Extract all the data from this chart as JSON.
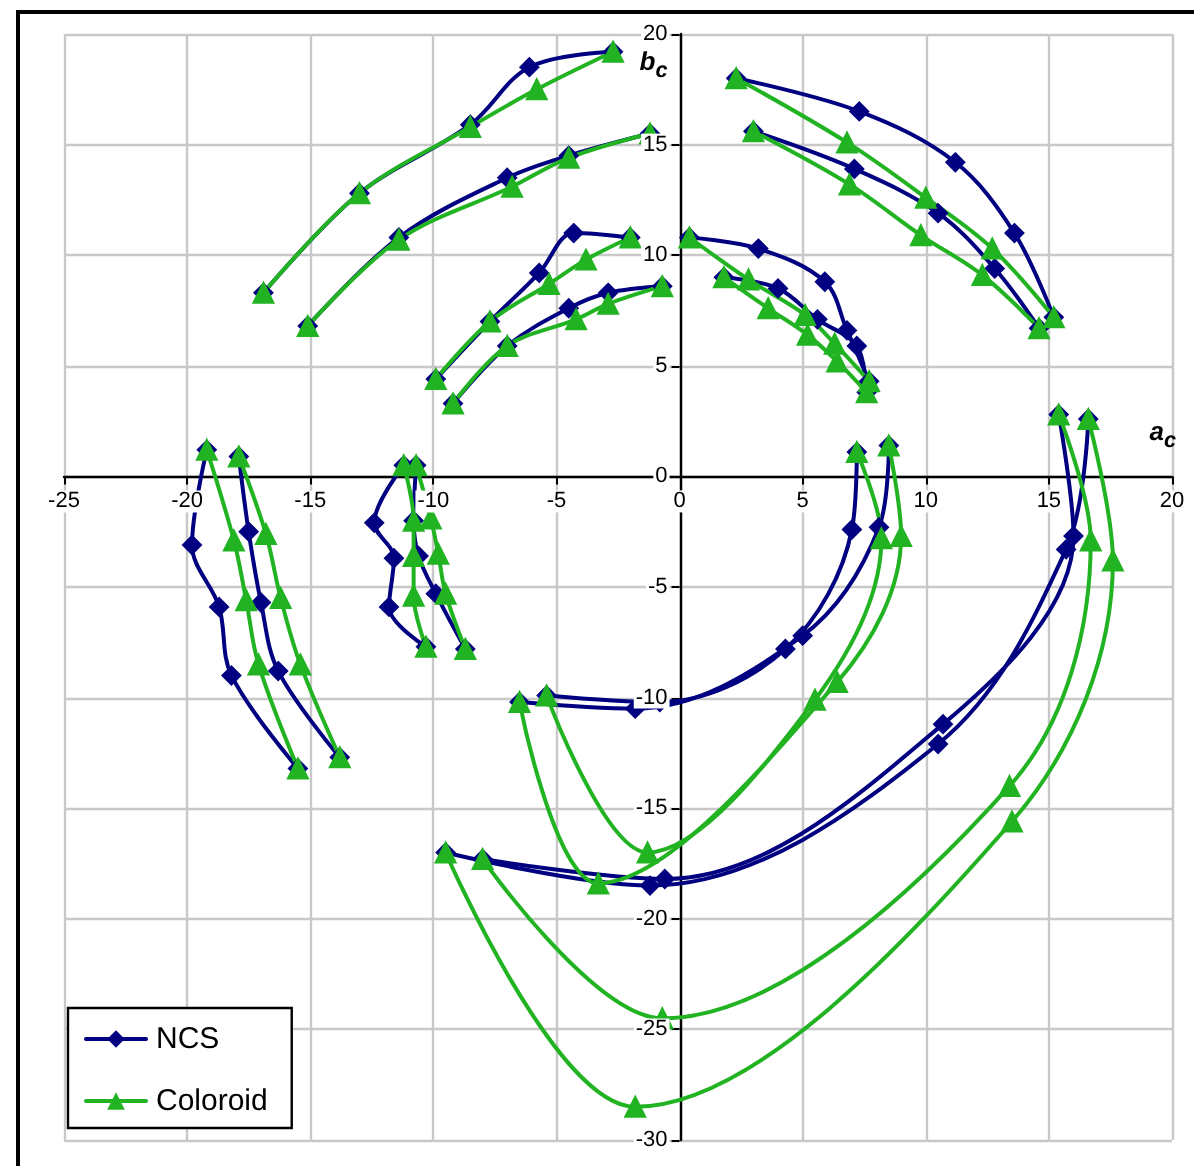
{
  "chart_data": {
    "type": "line",
    "xlabel": "a$_{c}$",
    "ylabel": "b$_{c}$",
    "xlim": [
      -25,
      20
    ],
    "ylim": [
      -30,
      20
    ],
    "xticks": [
      -25,
      -20,
      -15,
      -10,
      -5,
      0,
      5,
      10,
      15,
      20
    ],
    "yticks": [
      -30,
      -25,
      -20,
      -15,
      -10,
      -5,
      0,
      5,
      10,
      15,
      20
    ],
    "grid": true,
    "legend": "bottom left",
    "series": [
      {
        "name": "NCS",
        "color": "#000080",
        "marker": "diamond",
        "x": [
          -16.9,
          -13.0,
          -8.5,
          -6.1,
          -2.7,
          null,
          -15.1,
          -11.4,
          -7.0,
          -4.5,
          -1.2,
          null,
          -9.9,
          -7.7,
          -5.7,
          -4.3,
          -2.0,
          null,
          -9.2,
          -7.0,
          -4.5,
          -2.9,
          -0.7,
          null,
          2.3,
          7.3,
          11.2,
          13.6,
          15.2,
          null,
          3.0,
          7.1,
          10.5,
          12.8,
          14.6,
          null,
          0.4,
          3.2,
          5.9,
          6.8,
          7.7,
          null,
          1.8,
          4.0,
          5.6,
          7.2,
          7.6,
          null,
          -19.2,
          -19.8,
          -18.7,
          -18.2,
          -15.5,
          null,
          -17.9,
          -17.5,
          -17.0,
          -16.3,
          -13.8,
          null,
          -11.2,
          -12.4,
          -11.6,
          -11.8,
          -10.3,
          null,
          -10.7,
          -10.8,
          -10.6,
          -9.9,
          -8.7,
          null,
          -6.5,
          -1.8,
          5.0,
          8.1,
          8.5,
          null,
          -5.4,
          -0.8,
          4.3,
          7.0,
          7.2,
          null,
          -9.5,
          -1.2,
          10.5,
          15.7,
          16.6,
          null,
          -8.0,
          -0.6,
          10.7,
          16.0,
          15.4
        ],
        "values": [
          8.3,
          12.8,
          15.9,
          18.5,
          19.2,
          null,
          6.8,
          10.8,
          13.5,
          14.5,
          15.5,
          null,
          4.4,
          7.0,
          9.2,
          11.0,
          10.8,
          null,
          3.3,
          5.9,
          7.6,
          8.3,
          8.6,
          null,
          18.0,
          16.5,
          14.2,
          11.0,
          7.2,
          null,
          15.6,
          13.9,
          11.9,
          9.4,
          6.7,
          null,
          10.8,
          10.3,
          8.8,
          6.6,
          4.3,
          null,
          9.0,
          8.5,
          7.1,
          5.9,
          3.8,
          null,
          1.2,
          -3.1,
          -5.9,
          -9.0,
          -13.2,
          null,
          0.9,
          -2.5,
          -5.7,
          -8.8,
          -12.7,
          null,
          0.5,
          -2.1,
          -3.7,
          -5.9,
          -7.7,
          null,
          0.5,
          -2.0,
          -3.6,
          -5.3,
          -7.8,
          null,
          -10.2,
          -10.5,
          -7.2,
          -2.3,
          1.4,
          null,
          -9.9,
          -10.2,
          -7.8,
          -2.4,
          1.1,
          null,
          -17.0,
          -18.5,
          -12.1,
          -3.3,
          2.6,
          null,
          -17.3,
          -18.2,
          -11.2,
          -2.7,
          2.8
        ]
      },
      {
        "name": "Coloroid",
        "color": "#22b322",
        "marker": "triangle",
        "x": [
          -16.9,
          -13.0,
          -8.5,
          -5.8,
          -2.7,
          null,
          -15.1,
          -11.4,
          -6.8,
          -4.5,
          -1.2,
          null,
          -9.9,
          -7.7,
          -5.3,
          -3.8,
          -2.0,
          null,
          -9.2,
          -7.0,
          -4.2,
          -2.9,
          -0.7,
          null,
          2.3,
          6.8,
          10.0,
          12.7,
          15.2,
          null,
          3.0,
          6.9,
          9.8,
          12.3,
          14.6,
          null,
          0.4,
          2.8,
          5.1,
          6.3,
          7.7,
          null,
          1.8,
          3.6,
          5.2,
          6.4,
          7.6,
          null,
          -19.2,
          -18.1,
          -17.6,
          -17.1,
          -15.5,
          null,
          -17.9,
          -16.8,
          -16.2,
          -15.4,
          -13.8,
          null,
          -11.2,
          -10.8,
          -10.8,
          -10.8,
          -10.3,
          null,
          -10.7,
          -10.1,
          -9.8,
          -9.5,
          -8.7,
          null,
          -6.5,
          -3.3,
          6.4,
          9.0,
          8.5,
          null,
          -5.4,
          -1.3,
          5.5,
          8.2,
          7.2,
          null,
          -9.5,
          -1.8,
          13.5,
          17.6,
          16.6,
          null,
          -8.0,
          -0.7,
          13.4,
          16.7,
          15.4
        ],
        "values": [
          8.3,
          12.8,
          15.8,
          17.5,
          19.2,
          null,
          6.8,
          10.7,
          13.1,
          14.4,
          15.5,
          null,
          4.4,
          7.0,
          8.7,
          9.8,
          10.8,
          null,
          3.3,
          5.9,
          7.1,
          7.8,
          8.6,
          null,
          18.0,
          15.1,
          12.6,
          10.3,
          7.2,
          null,
          15.6,
          13.2,
          10.9,
          9.1,
          6.7,
          null,
          10.8,
          8.9,
          7.3,
          6.0,
          4.3,
          null,
          9.0,
          7.6,
          6.4,
          5.2,
          3.8,
          null,
          1.2,
          -2.9,
          -5.6,
          -8.5,
          -13.2,
          null,
          0.9,
          -2.6,
          -5.5,
          -8.5,
          -12.7,
          null,
          0.5,
          -2.0,
          -3.6,
          -5.4,
          -7.7,
          null,
          0.5,
          -1.9,
          -3.5,
          -5.3,
          -7.8,
          null,
          -10.2,
          -18.4,
          -9.3,
          -2.7,
          1.4,
          null,
          -9.9,
          -17.0,
          -10.1,
          -2.8,
          1.1,
          null,
          -17.0,
          -28.5,
          -15.6,
          -3.8,
          2.6,
          null,
          -17.3,
          -24.5,
          -14.0,
          -2.9,
          2.8
        ]
      }
    ]
  }
}
